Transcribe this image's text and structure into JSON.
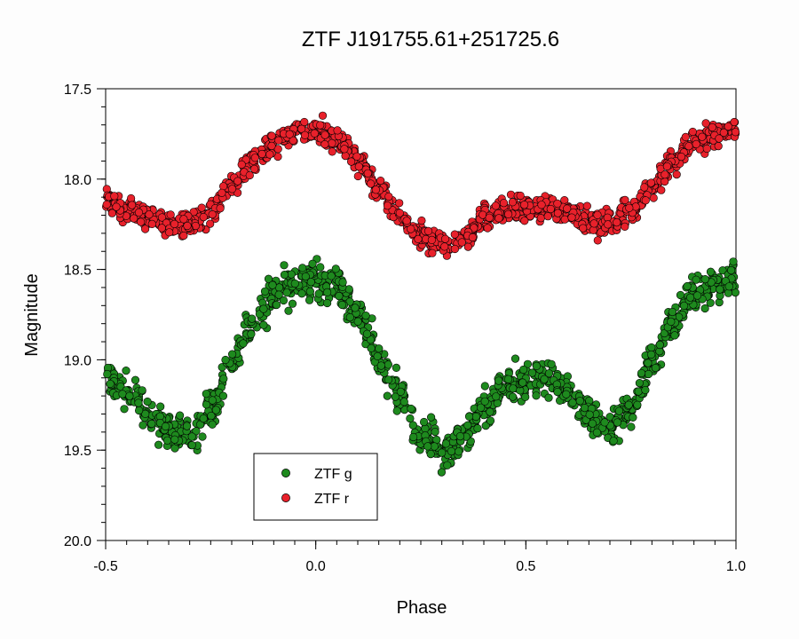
{
  "chart_data": {
    "type": "scatter",
    "title": "ZTF J191755.61+251725.6",
    "xlabel": "Phase",
    "ylabel": "Magnitude",
    "xlim": [
      -0.5,
      1.0
    ],
    "ylim": [
      17.5,
      20.0
    ],
    "y_inverted": true,
    "x_ticks": [
      -0.5,
      0.0,
      0.5,
      1.0
    ],
    "x_tick_labels": [
      "-0.5",
      "0.0",
      "0.5",
      "1.0"
    ],
    "y_ticks": [
      17.5,
      18.0,
      18.5,
      19.0,
      19.5,
      20.0
    ],
    "y_tick_labels": [
      "17.5",
      "18.0",
      "18.5",
      "19.0",
      "19.5",
      "20.0"
    ],
    "grid": false,
    "legend_position": "bottom-left",
    "series": [
      {
        "name": "ZTF g",
        "color": "#1e8a1e",
        "points": [
          [
            -0.5,
            19.08
          ],
          [
            -0.45,
            19.18
          ],
          [
            -0.4,
            19.3
          ],
          [
            -0.35,
            19.4
          ],
          [
            -0.3,
            19.42
          ],
          [
            -0.25,
            19.28
          ],
          [
            -0.2,
            19.02
          ],
          [
            -0.15,
            18.8
          ],
          [
            -0.1,
            18.64
          ],
          [
            -0.05,
            18.58
          ],
          [
            0.0,
            18.56
          ],
          [
            0.05,
            18.6
          ],
          [
            0.1,
            18.76
          ],
          [
            0.15,
            18.98
          ],
          [
            0.2,
            19.2
          ],
          [
            0.25,
            19.42
          ],
          [
            0.3,
            19.5
          ],
          [
            0.35,
            19.42
          ],
          [
            0.4,
            19.26
          ],
          [
            0.45,
            19.15
          ],
          [
            0.5,
            19.1
          ],
          [
            0.55,
            19.11
          ],
          [
            0.6,
            19.18
          ],
          [
            0.65,
            19.3
          ],
          [
            0.7,
            19.38
          ],
          [
            0.75,
            19.28
          ],
          [
            0.8,
            19.02
          ],
          [
            0.85,
            18.8
          ],
          [
            0.9,
            18.64
          ],
          [
            0.95,
            18.58
          ],
          [
            1.0,
            18.56
          ]
        ]
      },
      {
        "name": "ZTF r",
        "color": "#e8212b",
        "points": [
          [
            -0.5,
            18.12
          ],
          [
            -0.45,
            18.16
          ],
          [
            -0.4,
            18.21
          ],
          [
            -0.35,
            18.26
          ],
          [
            -0.3,
            18.25
          ],
          [
            -0.25,
            18.18
          ],
          [
            -0.2,
            18.04
          ],
          [
            -0.15,
            17.9
          ],
          [
            -0.1,
            17.8
          ],
          [
            -0.05,
            17.74
          ],
          [
            0.0,
            17.73
          ],
          [
            0.05,
            17.78
          ],
          [
            0.1,
            17.9
          ],
          [
            0.15,
            18.05
          ],
          [
            0.2,
            18.2
          ],
          [
            0.25,
            18.32
          ],
          [
            0.3,
            18.36
          ],
          [
            0.35,
            18.32
          ],
          [
            0.4,
            18.22
          ],
          [
            0.45,
            18.17
          ],
          [
            0.5,
            18.16
          ],
          [
            0.55,
            18.16
          ],
          [
            0.6,
            18.19
          ],
          [
            0.65,
            18.24
          ],
          [
            0.7,
            18.25
          ],
          [
            0.75,
            18.18
          ],
          [
            0.8,
            18.04
          ],
          [
            0.85,
            17.9
          ],
          [
            0.9,
            17.8
          ],
          [
            0.95,
            17.74
          ],
          [
            1.0,
            17.73
          ]
        ]
      }
    ]
  }
}
